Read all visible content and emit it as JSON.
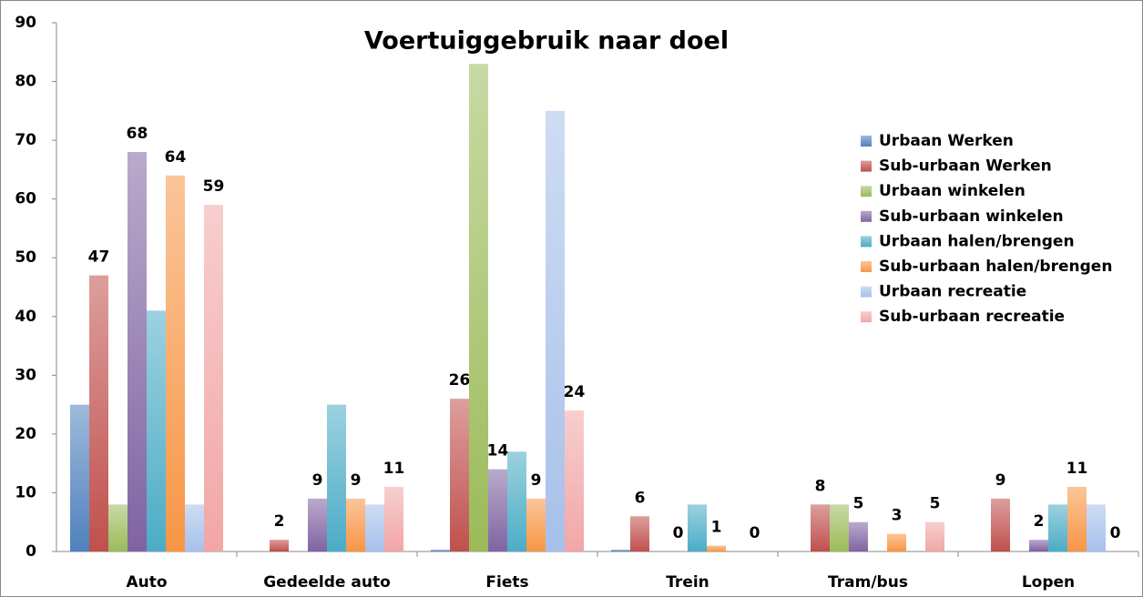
{
  "chart_data": {
    "type": "bar",
    "title": "Voertuiggebruik naar doel",
    "categories": [
      "Auto",
      "Gedeelde auto",
      "Fiets",
      "Trein",
      "Tram/bus",
      "Lopen"
    ],
    "series": [
      {
        "name": "Urbaan Werken",
        "color": "#4f81bd",
        "values": [
          25,
          0,
          0.3,
          0.3,
          0,
          0
        ]
      },
      {
        "name": "Sub-urbaan Werken",
        "color": "#c0504d",
        "values": [
          47,
          2,
          26,
          6,
          8,
          9
        ],
        "data_labels": true
      },
      {
        "name": "Urbaan winkelen",
        "color": "#9bbb59",
        "values": [
          8,
          0,
          83,
          0,
          8,
          0
        ]
      },
      {
        "name": "Sub-urbaan winkelen",
        "color": "#8064a2",
        "values": [
          68,
          9,
          14,
          0,
          5,
          2
        ],
        "data_labels": true
      },
      {
        "name": "Urbaan halen/brengen",
        "color": "#4bacc6",
        "values": [
          41,
          25,
          17,
          8,
          0,
          8
        ]
      },
      {
        "name": "Sub-urbaan halen/brengen",
        "color": "#f79646",
        "values": [
          64,
          9,
          9,
          1,
          3,
          11
        ],
        "data_labels": true
      },
      {
        "name": "Urbaan recreatie",
        "color": "#a7c0ea",
        "values": [
          8,
          8,
          75,
          0,
          0,
          8
        ]
      },
      {
        "name": "Sub-urbaan recreatie",
        "color": "#f2a6a6",
        "values": [
          59,
          11,
          24,
          0,
          5,
          0
        ],
        "data_labels": true
      }
    ],
    "ylim": [
      0,
      90
    ],
    "yticks": [
      0,
      10,
      20,
      30,
      40,
      50,
      60,
      70,
      80,
      90
    ],
    "grid": false,
    "legend": "right"
  }
}
